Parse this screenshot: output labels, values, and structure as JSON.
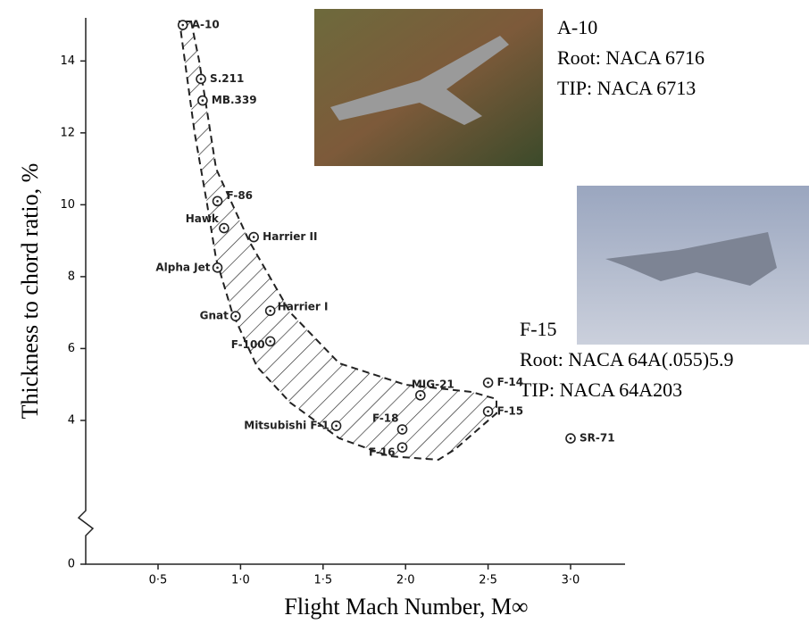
{
  "chart_data": {
    "type": "scatter",
    "xlabel": "Flight Mach Number, M∞",
    "ylabel": "Thickness to chord ratio, %",
    "point_labels": [
      "A-10",
      "S.211",
      "MB.339",
      "F-86",
      "Hawk",
      "Harrier II",
      "Alpha Jet",
      "Harrier I",
      "Gnat",
      "F-100",
      "MIG-21",
      "F-14",
      "F-15",
      "Mitsubishi F-1",
      "F-18",
      "F-16",
      "SR-71"
    ],
    "x": [
      0.65,
      0.76,
      0.77,
      0.86,
      0.9,
      1.08,
      0.86,
      1.18,
      0.97,
      1.18,
      2.09,
      2.5,
      2.5,
      1.58,
      1.98,
      1.98,
      3.0
    ],
    "values": [
      15.0,
      13.5,
      12.9,
      10.1,
      9.35,
      9.1,
      8.25,
      7.05,
      6.9,
      6.2,
      4.7,
      5.05,
      4.25,
      3.85,
      3.75,
      3.25,
      3.5
    ],
    "color": "#222222",
    "xlim": [
      0,
      3.3
    ],
    "ylim": [
      0,
      15.2
    ],
    "xticks": [
      {
        "value": 0.5,
        "label": "0·5"
      },
      {
        "value": 1.0,
        "label": "1·0"
      },
      {
        "value": 1.5,
        "label": "1·5"
      },
      {
        "value": 2.0,
        "label": "2·0"
      },
      {
        "value": 2.5,
        "label": "2·5"
      },
      {
        "value": 3.0,
        "label": "3·0"
      }
    ],
    "yticks": [
      0,
      4,
      6,
      8,
      10,
      12,
      14
    ],
    "annotations": [
      "A-10",
      "Root: NACA 6716",
      "TIP: NACA 6713",
      "F-15",
      "Root: NACA 64A(.055)5.9",
      "TIP: NACA 64A203"
    ]
  }
}
